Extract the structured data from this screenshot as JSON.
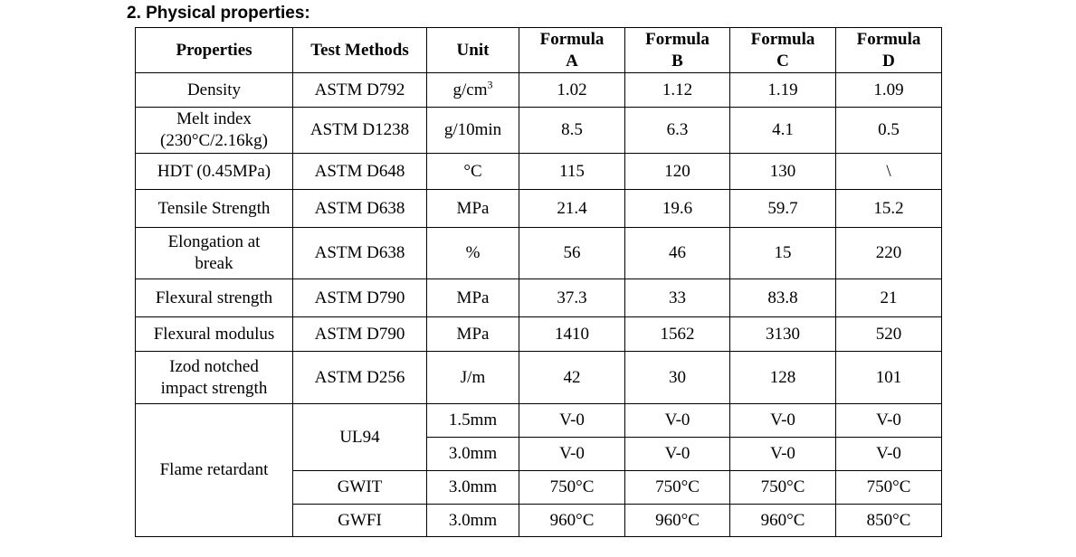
{
  "section_title": "2. Physical properties:",
  "table": {
    "headers": {
      "properties": "Properties",
      "test_methods": "Test Methods",
      "unit": "Unit",
      "formula_a_line1": "Formula",
      "formula_a_line2": "A",
      "formula_b_line1": "Formula",
      "formula_b_line2": "B",
      "formula_c_line1": "Formula",
      "formula_c_line2": "C",
      "formula_d_line1": "Formula",
      "formula_d_line2": "D"
    },
    "rows": [
      {
        "property": "Density",
        "method": "ASTM D792",
        "unit": "g/cm",
        "unit_sup": "3",
        "a": "1.02",
        "b": "1.12",
        "c": "1.19",
        "d": "1.09"
      },
      {
        "property_line1": "Melt index",
        "property_line2": "(230°C/2.16kg)",
        "method": "ASTM D1238",
        "unit": "g/10min",
        "a": "8.5",
        "b": "6.3",
        "c": "4.1",
        "d": "0.5"
      },
      {
        "property": "HDT (0.45MPa)",
        "method": "ASTM D648",
        "unit": "°C",
        "a": "115",
        "b": "120",
        "c": "130",
        "d": "\\"
      },
      {
        "property": "Tensile Strength",
        "method": "ASTM D638",
        "unit": "MPa",
        "a": "21.4",
        "b": "19.6",
        "c": "59.7",
        "d": "15.2"
      },
      {
        "property_line1": "Elongation at",
        "property_line2": "break",
        "method": "ASTM D638",
        "unit": "%",
        "a": "56",
        "b": "46",
        "c": "15",
        "d": "220"
      },
      {
        "property": "Flexural strength",
        "method": "ASTM D790",
        "unit": "MPa",
        "a": "37.3",
        "b": "33",
        "c": "83.8",
        "d": "21"
      },
      {
        "property": "Flexural modulus",
        "method": "ASTM D790",
        "unit": "MPa",
        "a": "1410",
        "b": "1562",
        "c": "3130",
        "d": "520"
      },
      {
        "property_line1": "Izod notched",
        "property_line2": "impact strength",
        "method": "ASTM D256",
        "unit": "J/m",
        "a": "42",
        "b": "30",
        "c": "128",
        "d": "101"
      }
    ],
    "flame": {
      "property": "Flame retardant",
      "ul94": {
        "method": "UL94",
        "row1": {
          "unit": "1.5mm",
          "a": "V-0",
          "b": "V-0",
          "c": "V-0",
          "d": "V-0"
        },
        "row2": {
          "unit": "3.0mm",
          "a": "V-0",
          "b": "V-0",
          "c": "V-0",
          "d": "V-0"
        }
      },
      "gwit": {
        "method": "GWIT",
        "unit": "3.0mm",
        "a": "750°C",
        "b": "750°C",
        "c": "750°C",
        "d": "750°C"
      },
      "gwfi": {
        "method": "GWFI",
        "unit": "3.0mm",
        "a": "960°C",
        "b": "960°C",
        "c": "960°C",
        "d": "850°C"
      }
    }
  }
}
